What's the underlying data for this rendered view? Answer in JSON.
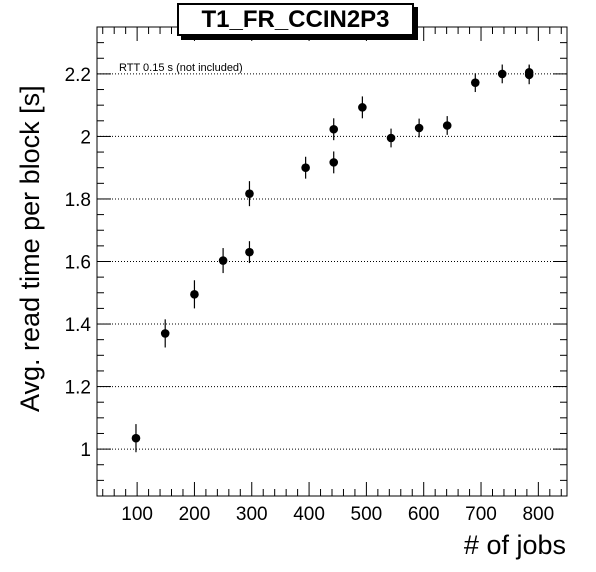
{
  "chart_data": {
    "type": "scatter",
    "title": "T1_FR_CCIN2P3",
    "xlabel": "# of jobs",
    "ylabel": "Avg. read time per block [s]",
    "annotation": "RTT 0.15 s (not included)",
    "xlim": [
      30,
      850
    ],
    "ylim": [
      0.85,
      2.35
    ],
    "grid": "horizontal dotted",
    "x_ticks": [
      100,
      200,
      300,
      400,
      500,
      600,
      700,
      800
    ],
    "y_ticks": [
      1,
      1.2,
      1.4,
      1.6,
      1.8,
      2,
      2.2
    ],
    "x_tick_labels": [
      "100",
      "200",
      "300",
      "400",
      "500",
      "600",
      "700",
      "800"
    ],
    "y_tick_labels": [
      "1",
      "1.2",
      "1.4",
      "1.6",
      "1.8",
      "2",
      "2.2"
    ],
    "points": [
      {
        "x": 98,
        "y": 1.035,
        "err": 0.045
      },
      {
        "x": 149,
        "y": 1.37,
        "err": 0.045
      },
      {
        "x": 200,
        "y": 1.495,
        "err": 0.045
      },
      {
        "x": 250,
        "y": 1.603,
        "err": 0.04
      },
      {
        "x": 296,
        "y": 1.63,
        "err": 0.035
      },
      {
        "x": 296,
        "y": 1.817,
        "err": 0.04
      },
      {
        "x": 394,
        "y": 1.9,
        "err": 0.035
      },
      {
        "x": 443,
        "y": 1.917,
        "err": 0.035
      },
      {
        "x": 443,
        "y": 2.023,
        "err": 0.035
      },
      {
        "x": 493,
        "y": 2.093,
        "err": 0.035
      },
      {
        "x": 543,
        "y": 1.995,
        "err": 0.03
      },
      {
        "x": 592,
        "y": 2.027,
        "err": 0.03
      },
      {
        "x": 641,
        "y": 2.035,
        "err": 0.03
      },
      {
        "x": 690,
        "y": 2.172,
        "err": 0.03
      },
      {
        "x": 737,
        "y": 2.2,
        "err": 0.03
      },
      {
        "x": 784,
        "y": 2.197,
        "err": 0.03
      },
      {
        "x": 784,
        "y": 2.205,
        "err": 0.025
      }
    ]
  }
}
